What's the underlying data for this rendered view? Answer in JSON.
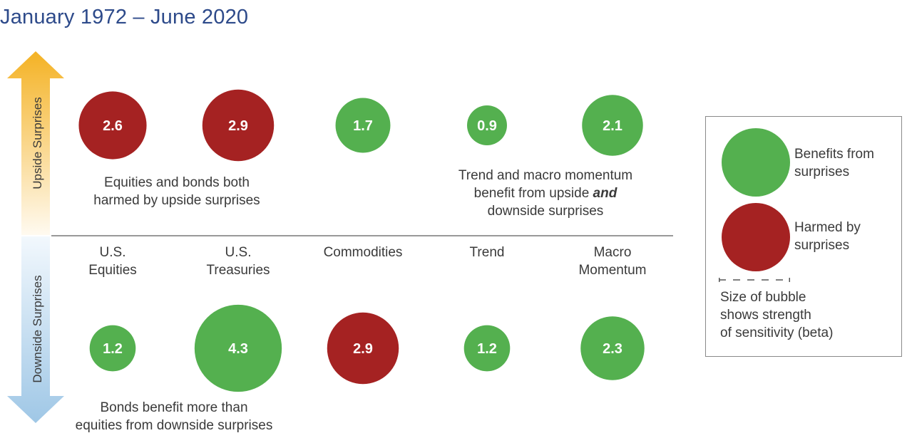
{
  "header": {
    "title": "January 1972 – June 2020"
  },
  "axis": {
    "upside_label": "Upside Surprises",
    "downside_label": "Downside Surprises"
  },
  "colors": {
    "benefit": "#54b04f",
    "harm": "#a52222",
    "up_arrow": "#f5b72c",
    "down_arrow": "#a9cce8"
  },
  "notes": {
    "upside_left": [
      "Equities and bonds both",
      "harmed by upside surprises"
    ],
    "upside_right_line1": "Trend and macro momentum",
    "upside_right_line2_pre": "benefit from upside ",
    "upside_right_line2_em": "and",
    "upside_right_line3": "downside surprises",
    "downside_left": [
      "Bonds benefit more than",
      "equities from downside surprises"
    ]
  },
  "legend": {
    "benefit_label": [
      "Benefits from",
      "surprises"
    ],
    "harm_label": [
      "Harmed by",
      "surprises"
    ],
    "size_note": [
      "Size of bubble",
      "shows strength",
      "of sensitivity (beta)"
    ]
  },
  "chart_data": {
    "type": "bubble",
    "title": "January 1972 – June 2020",
    "categories": [
      [
        "U.S.",
        "Equities"
      ],
      [
        "U.S.",
        "Treasuries"
      ],
      [
        "Commodities"
      ],
      [
        "Trend"
      ],
      [
        "Macro",
        "Momentum"
      ]
    ],
    "series": [
      {
        "name": "Upside Surprises",
        "values": [
          2.6,
          2.9,
          1.7,
          0.9,
          2.1
        ],
        "effect": [
          "harmed",
          "harmed",
          "benefits",
          "benefits",
          "benefits"
        ]
      },
      {
        "name": "Downside Surprises",
        "values": [
          1.2,
          4.3,
          2.9,
          1.2,
          2.3
        ],
        "effect": [
          "benefits",
          "benefits",
          "harmed",
          "benefits",
          "benefits"
        ]
      }
    ]
  }
}
